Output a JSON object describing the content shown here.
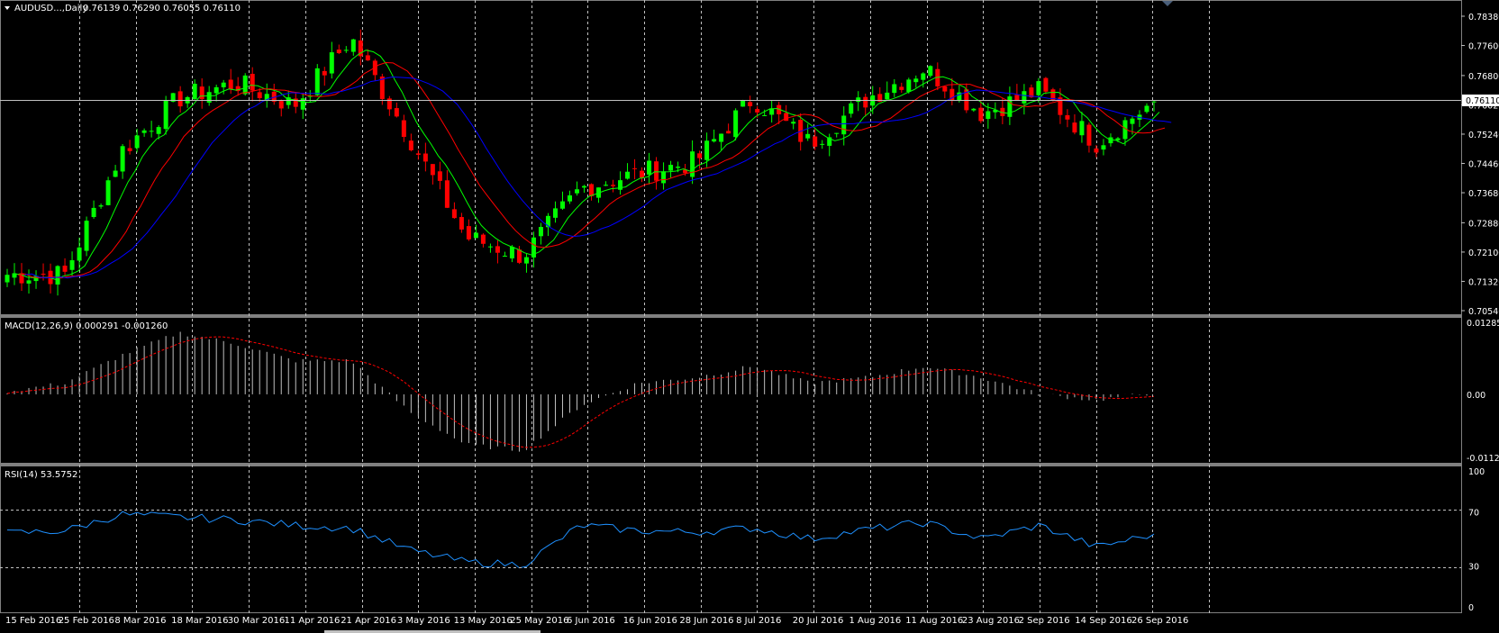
{
  "window": {
    "menu_icon": "triangle-down-icon",
    "scroll_marker_icon": "triangle-down-icon"
  },
  "main": {
    "symbol_title": "AUDUSD...,Daily",
    "ohlc": "0.76139 0.76290 0.76055 0.76110",
    "current_price_label": "0.76110",
    "price_ticks": [
      "0.78380",
      "0.77600",
      "0.76800",
      "0.76020",
      "0.75240",
      "0.74460",
      "0.73680",
      "0.72880",
      "0.72100",
      "0.71320",
      "0.70540"
    ]
  },
  "macd": {
    "title": "MACD(12,26,9) 0.000291 -0.001260",
    "ticks": [
      "0.012852",
      "0.00",
      "-0.011261"
    ]
  },
  "rsi": {
    "title": "RSI(14) 53.5752",
    "ticks": [
      "100",
      "70",
      "30",
      "0"
    ]
  },
  "time_axis": {
    "labels": [
      "15 Feb 2016",
      "25 Feb 2016",
      "8 Mar 2016",
      "18 Mar 2016",
      "30 Mar 2016",
      "11 Apr 2016",
      "21 Apr 2016",
      "3 May 2016",
      "13 May 2016",
      "25 May 2016",
      "6 Jun 2016",
      "16 Jun 2016",
      "28 Jun 2016",
      "8 Jul 2016",
      "20 Jul 2016",
      "1 Aug 2016",
      "11 Aug 2016",
      "23 Aug 2016",
      "2 Sep 2016",
      "14 Sep 2016",
      "26 Sep 2016"
    ]
  },
  "colors": {
    "background": "#000000",
    "bull_candle": "#00ff00",
    "bear_candle": "#ff0000",
    "ma_fast": "#00ff00",
    "ma_mid": "#ff0000",
    "ma_slow": "#0000ff",
    "macd_histogram": "#c0c0c0",
    "macd_signal": "#ff0000",
    "rsi_line": "#1e90ff",
    "grid": "#c0c0c0",
    "panel_separator": "#808080",
    "price_line": "#c0c0c0"
  },
  "chart_data": {
    "type": "candlestick",
    "x_start": "15 Feb 2016",
    "x_end": "26 Sep 2016",
    "price_range": [
      0.7054,
      0.7838
    ],
    "anchors": [
      [
        "15 Feb 2016",
        0.715
      ],
      [
        "25 Feb 2016",
        0.715
      ],
      [
        "8 Mar 2016",
        0.748
      ],
      [
        "18 Mar 2016",
        0.762
      ],
      [
        "30 Mar 2016",
        0.766
      ],
      [
        "11 Apr 2016",
        0.76
      ],
      [
        "21 Apr 2016",
        0.778
      ],
      [
        "3 May 2016",
        0.752
      ],
      [
        "13 May 2016",
        0.725
      ],
      [
        "25 May 2016",
        0.72
      ],
      [
        "6 Jun 2016",
        0.738
      ],
      [
        "16 Jun 2016",
        0.742
      ],
      [
        "28 Jun 2016",
        0.745
      ],
      [
        "8 Jul 2016",
        0.762
      ],
      [
        "20 Jul 2016",
        0.75
      ],
      [
        "1 Aug 2016",
        0.762
      ],
      [
        "11 Aug 2016",
        0.77
      ],
      [
        "23 Aug 2016",
        0.758
      ],
      [
        "2 Sep 2016",
        0.764
      ],
      [
        "14 Sep 2016",
        0.75
      ],
      [
        "26 Sep 2016",
        0.7611
      ]
    ],
    "macd_range": [
      -0.011261,
      0.012852
    ],
    "macd_anchors": [
      [
        "15 Feb 2016",
        0.0005
      ],
      [
        "25 Feb 2016",
        0.002
      ],
      [
        "8 Mar 2016",
        0.007
      ],
      [
        "18 Mar 2016",
        0.011
      ],
      [
        "30 Mar 2016",
        0.009
      ],
      [
        "11 Apr 2016",
        0.006
      ],
      [
        "21 Apr 2016",
        0.006
      ],
      [
        "3 May 2016",
        -0.003
      ],
      [
        "13 May 2016",
        -0.009
      ],
      [
        "25 May 2016",
        -0.01
      ],
      [
        "6 Jun 2016",
        -0.002
      ],
      [
        "16 Jun 2016",
        0.002
      ],
      [
        "28 Jun 2016",
        0.003
      ],
      [
        "8 Jul 2016",
        0.005
      ],
      [
        "20 Jul 2016",
        0.002
      ],
      [
        "1 Aug 2016",
        0.003
      ],
      [
        "11 Aug 2016",
        0.005
      ],
      [
        "23 Aug 2016",
        0.003
      ],
      [
        "2 Sep 2016",
        0.0
      ],
      [
        "14 Sep 2016",
        -0.001
      ],
      [
        "26 Sep 2016",
        0.0003
      ]
    ],
    "rsi_range": [
      0,
      100
    ],
    "rsi_levels": [
      70,
      30
    ],
    "rsi_anchors": [
      [
        "15 Feb 2016",
        54
      ],
      [
        "25 Feb 2016",
        56
      ],
      [
        "8 Mar 2016",
        68
      ],
      [
        "18 Mar 2016",
        66
      ],
      [
        "30 Mar 2016",
        64
      ],
      [
        "11 Apr 2016",
        60
      ],
      [
        "21 Apr 2016",
        58
      ],
      [
        "3 May 2016",
        42
      ],
      [
        "13 May 2016",
        33
      ],
      [
        "25 May 2016",
        31
      ],
      [
        "6 Jun 2016",
        60
      ],
      [
        "16 Jun 2016",
        56
      ],
      [
        "28 Jun 2016",
        55
      ],
      [
        "8 Jul 2016",
        58
      ],
      [
        "20 Jul 2016",
        50
      ],
      [
        "1 Aug 2016",
        57
      ],
      [
        "11 Aug 2016",
        62
      ],
      [
        "23 Aug 2016",
        50
      ],
      [
        "2 Sep 2016",
        60
      ],
      [
        "14 Sep 2016",
        44
      ],
      [
        "26 Sep 2016",
        53.5752
      ]
    ]
  }
}
